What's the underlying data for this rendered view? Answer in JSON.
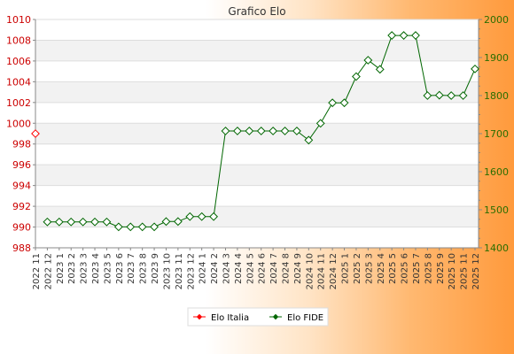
{
  "chart_data": {
    "type": "line",
    "title": "Grafico Elo",
    "x": [
      "2022 11",
      "2022 12",
      "2023 1",
      "2023 2",
      "2023 3",
      "2023 4",
      "2023 5",
      "2023 6",
      "2023 7",
      "2023 8",
      "2023 9",
      "2023 10",
      "2023 11",
      "2023 12",
      "2024 1",
      "2024 2",
      "2024 3",
      "2024 4",
      "2024 5",
      "2024 6",
      "2024 7",
      "2024 8",
      "2024 9",
      "2024 10",
      "2024 11",
      "2024 12",
      "2025 1",
      "2025 2",
      "2025 3",
      "2025 4",
      "2025 5",
      "2025 6",
      "2025 7",
      "2025 8",
      "2025 9",
      "2025 10",
      "2025 11",
      "2025 12"
    ],
    "y_left": {
      "ylim": [
        988,
        1010
      ],
      "ticks": [
        "988",
        "990",
        "992",
        "994",
        "996",
        "998",
        "1000",
        "1002",
        "1004",
        "1006",
        "1008",
        "1010"
      ],
      "color": "#cc0000"
    },
    "y_right": {
      "ylim": [
        1400,
        2000
      ],
      "ticks": [
        "1400",
        "1500",
        "1600",
        "1700",
        "1800",
        "1900",
        "2000"
      ],
      "color": "#2a6e00"
    },
    "grid": true,
    "series": [
      {
        "name": "Elo Italia",
        "axis": "left",
        "color": "#ff0000",
        "values": [
          999,
          null,
          null,
          null,
          null,
          null,
          null,
          null,
          null,
          null,
          null,
          null,
          null,
          null,
          null,
          null,
          null,
          null,
          null,
          null,
          null,
          null,
          null,
          null,
          null,
          null,
          null,
          null,
          null,
          null,
          null,
          null,
          null,
          null,
          null,
          null,
          null,
          null
        ]
      },
      {
        "name": "Elo FIDE",
        "axis": "right",
        "color": "#006600",
        "values": [
          null,
          1468,
          1468,
          1468,
          1468,
          1468,
          1468,
          1455,
          1455,
          1455,
          1455,
          1469,
          1469,
          1482,
          1482,
          1482,
          1707,
          1707,
          1707,
          1707,
          1707,
          1707,
          1707,
          1683,
          1727,
          1781,
          1781,
          1850,
          1893,
          1869,
          1958,
          1958,
          1958,
          1800,
          1801,
          1800,
          1800,
          1870
        ]
      }
    ],
    "legend": {
      "position": "bottom-center",
      "items": [
        "Elo Italia",
        "Elo FIDE"
      ]
    }
  }
}
